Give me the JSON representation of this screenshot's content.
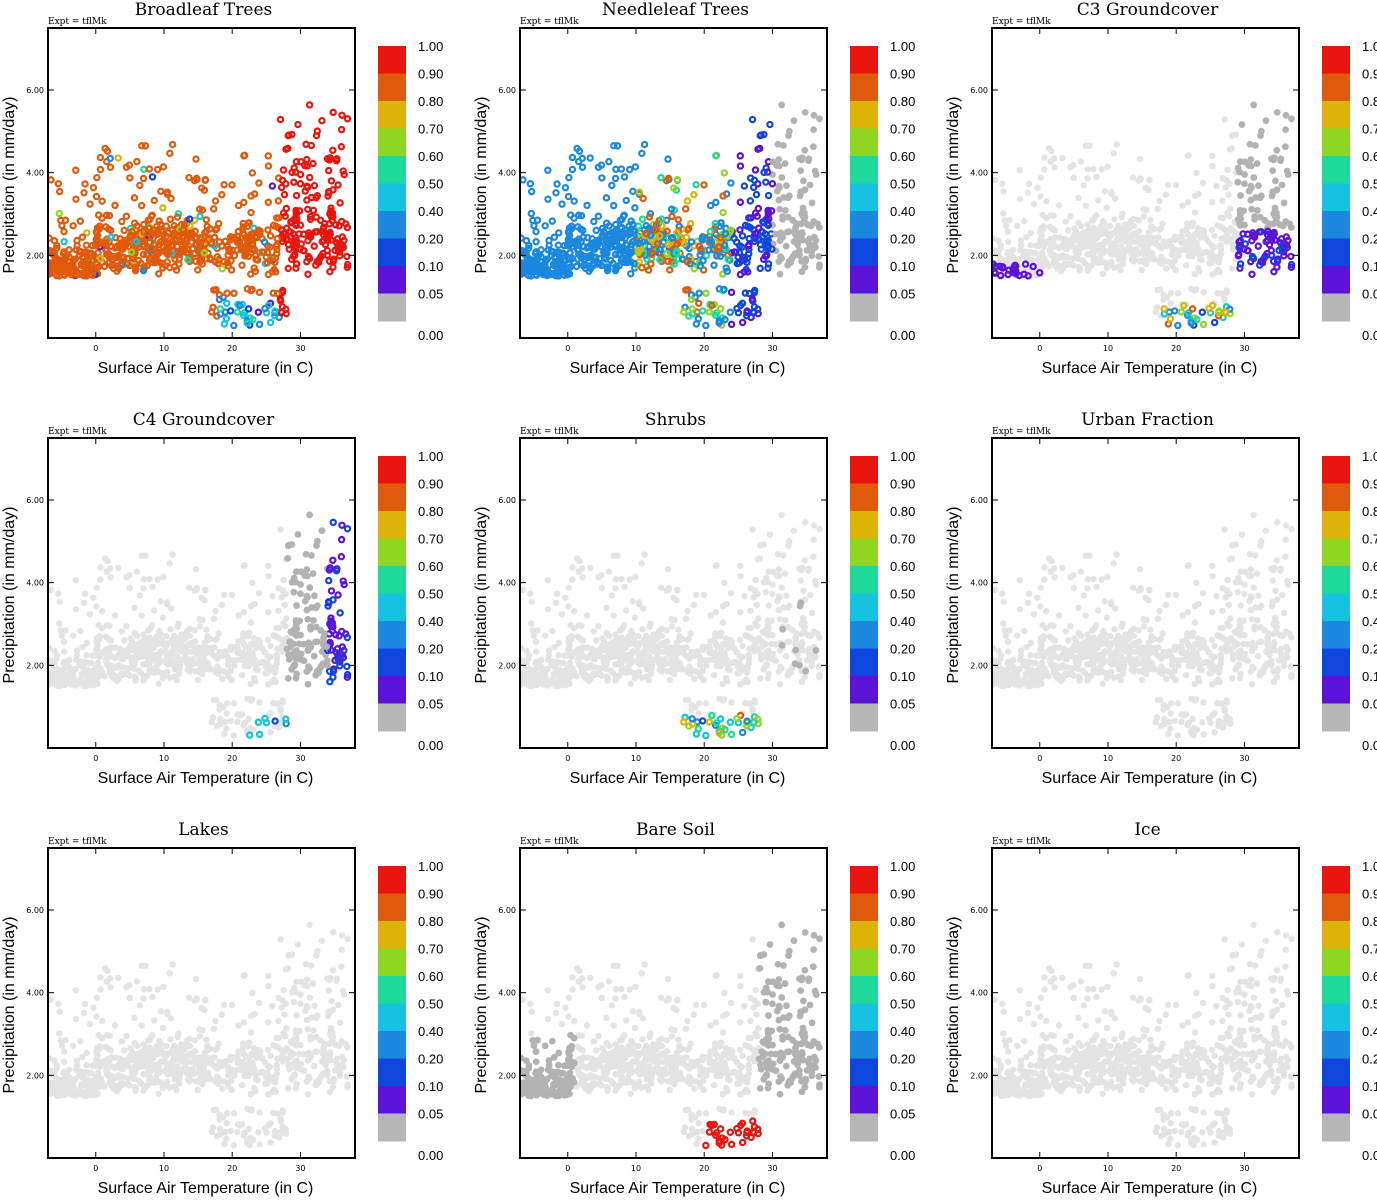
{
  "figure": {
    "experiment_label": "Expt = tflMk",
    "xlabel": "Surface Air Temperature (in C)",
    "ylabel": "Precipitation (in mm/day)"
  },
  "colorbar": {
    "labels": [
      "1.00",
      "0.90",
      "0.80",
      "0.70",
      "0.60",
      "0.50",
      "0.40",
      "0.20",
      "0.10",
      "0.05",
      "0.00"
    ],
    "colors": [
      "#e8140e",
      "#e05a0c",
      "#ddb30a",
      "#8fd623",
      "#1fd89a",
      "#15c2e0",
      "#1b88dd",
      "#0f47dd",
      "#5c13d8",
      "#b6b6b6"
    ]
  },
  "chart_data": [
    {
      "type": "scatter",
      "title": "Broadleaf Trees",
      "xlabel": "Surface Air Temperature (in C)",
      "ylabel": "Precipitation (in mm/day)",
      "xlim": [
        -7,
        38
      ],
      "ylim": [
        0,
        7.5
      ],
      "xticks": [
        0,
        10,
        20,
        30
      ],
      "yticks": [
        "2.00",
        "4.00",
        "6.00"
      ],
      "color_by": "fraction",
      "highlight": "broadleaf"
    },
    {
      "type": "scatter",
      "title": "Needleleaf Trees",
      "xlabel": "Surface Air Temperature (in C)",
      "ylabel": "Precipitation (in mm/day)",
      "xlim": [
        -7,
        38
      ],
      "ylim": [
        0,
        7.5
      ],
      "xticks": [
        0,
        10,
        20,
        30
      ],
      "yticks": [
        "2.00",
        "4.00",
        "6.00"
      ],
      "color_by": "fraction",
      "highlight": "needleleaf"
    },
    {
      "type": "scatter",
      "title": "C3 Groundcover",
      "xlabel": "Surface Air Temperature (in C)",
      "ylabel": "Precipitation (in mm/day)",
      "xlim": [
        -7,
        38
      ],
      "ylim": [
        0,
        7.5
      ],
      "xticks": [
        0,
        10,
        20,
        30
      ],
      "yticks": [
        "2.00",
        "4.00",
        "6.00"
      ],
      "color_by": "fraction",
      "highlight": "c3"
    },
    {
      "type": "scatter",
      "title": "C4 Groundcover",
      "xlabel": "Surface Air Temperature (in C)",
      "ylabel": "Precipitation (in mm/day)",
      "xlim": [
        -7,
        38
      ],
      "ylim": [
        0,
        7.5
      ],
      "xticks": [
        0,
        10,
        20,
        30
      ],
      "yticks": [
        "2.00",
        "4.00",
        "6.00"
      ],
      "color_by": "fraction",
      "highlight": "c4"
    },
    {
      "type": "scatter",
      "title": "Shrubs",
      "xlabel": "Surface Air Temperature (in C)",
      "ylabel": "Precipitation (in mm/day)",
      "xlim": [
        -7,
        38
      ],
      "ylim": [
        0,
        7.5
      ],
      "xticks": [
        0,
        10,
        20,
        30
      ],
      "yticks": [
        "2.00",
        "4.00",
        "6.00"
      ],
      "color_by": "fraction",
      "highlight": "shrubs"
    },
    {
      "type": "scatter",
      "title": "Urban Fraction",
      "xlabel": "Surface Air Temperature (in C)",
      "ylabel": "Precipitation (in mm/day)",
      "xlim": [
        -7,
        38
      ],
      "ylim": [
        0,
        7.5
      ],
      "xticks": [
        0,
        10,
        20,
        30
      ],
      "yticks": [
        "2.00",
        "4.00",
        "6.00"
      ],
      "color_by": "fraction",
      "highlight": "none"
    },
    {
      "type": "scatter",
      "title": "Lakes",
      "xlabel": "Surface Air Temperature (in C)",
      "ylabel": "Precipitation (in mm/day)",
      "xlim": [
        -7,
        38
      ],
      "ylim": [
        0,
        7.5
      ],
      "xticks": [
        0,
        10,
        20,
        30
      ],
      "yticks": [
        "2.00",
        "4.00",
        "6.00"
      ],
      "color_by": "fraction",
      "highlight": "none"
    },
    {
      "type": "scatter",
      "title": "Bare Soil",
      "xlabel": "Surface Air Temperature (in C)",
      "ylabel": "Precipitation (in mm/day)",
      "xlim": [
        -7,
        38
      ],
      "ylim": [
        0,
        7.5
      ],
      "xticks": [
        0,
        10,
        20,
        30
      ],
      "yticks": [
        "2.00",
        "4.00",
        "6.00"
      ],
      "color_by": "fraction",
      "highlight": "baresoil"
    },
    {
      "type": "scatter",
      "title": "Ice",
      "xlabel": "Surface Air Temperature (in C)",
      "ylabel": "Precipitation (in mm/day)",
      "xlim": [
        -7,
        38
      ],
      "ylim": [
        0,
        7.5
      ],
      "xticks": [
        0,
        10,
        20,
        30
      ],
      "yticks": [
        "2.00",
        "4.00",
        "6.00"
      ],
      "color_by": "fraction",
      "highlight": "none"
    }
  ]
}
